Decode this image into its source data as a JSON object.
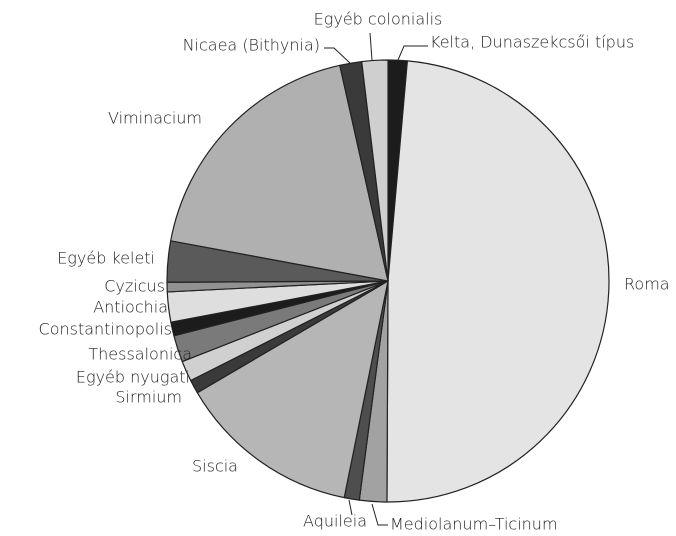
{
  "chart_data": {
    "type": "pie",
    "categories": [
      "Kelta, Dunaszekcsői típus",
      "Roma",
      "Mediolanum–Ticinum",
      "Aquileia",
      "Siscia",
      "Sirmium",
      "Egyéb nyugati",
      "Thessalonica",
      "Constantinopolis",
      "Antiochia",
      "Cyzicus",
      "Egyéb keleti",
      "Viminacium",
      "Nicaea (Bithynia)",
      "Egyéb colonialis"
    ],
    "values": [
      1.4,
      48.7,
      2.0,
      1.1,
      13.4,
      1.0,
      1.5,
      1.95,
      1.0,
      2.2,
      0.7,
      3.0,
      18.6,
      1.6,
      1.9
    ],
    "colors": [
      "#1c1c1c",
      "#e4e4e4",
      "#a2a2a2",
      "#4e4e4e",
      "#b6b6b6",
      "#3a3a3a",
      "#d0d0d0",
      "#7a7a7a",
      "#1c1c1c",
      "#dedede",
      "#929292",
      "#5a5a5a",
      "#b0b0b0",
      "#3a3a3a",
      "#cfcfcf"
    ]
  }
}
